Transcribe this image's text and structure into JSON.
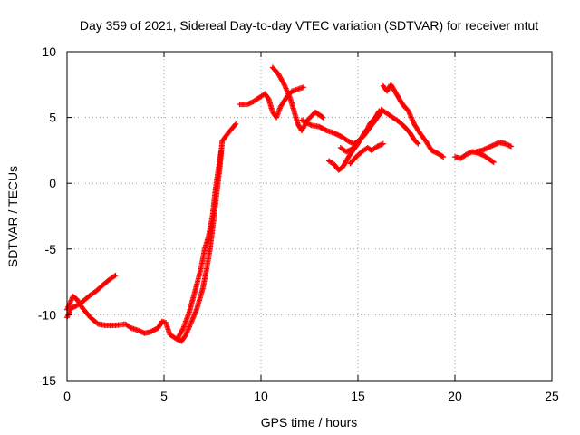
{
  "chart_data": {
    "type": "scatter",
    "title": "Day 359 of 2021, Sidereal Day-to-day VTEC variation (SDTVAR) for receiver mtut",
    "xlabel": "GPS time / hours",
    "ylabel": "SDTVAR / TECUs",
    "xlim": [
      0,
      25
    ],
    "ylim": [
      -15,
      10
    ],
    "xticks": [
      0,
      5,
      10,
      15,
      20,
      25
    ],
    "yticks": [
      -15,
      -10,
      -5,
      0,
      5,
      10
    ],
    "grid": true,
    "marker": "+",
    "series": [
      {
        "name": "mtut",
        "color": "#ff0000",
        "segments": [
          [
            [
              0.0,
              -10.2
            ],
            [
              0.2,
              -9.5
            ],
            [
              0.5,
              -9.3
            ],
            [
              0.8,
              -9.0
            ],
            [
              1.2,
              -8.5
            ],
            [
              1.5,
              -8.2
            ],
            [
              1.8,
              -7.8
            ],
            [
              2.2,
              -7.3
            ],
            [
              2.5,
              -7.0
            ]
          ],
          [
            [
              0.0,
              -9.6
            ],
            [
              0.3,
              -8.6
            ],
            [
              0.5,
              -8.8
            ],
            [
              0.8,
              -9.5
            ],
            [
              1.2,
              -10.2
            ],
            [
              1.6,
              -10.7
            ],
            [
              2.0,
              -10.8
            ],
            [
              2.5,
              -10.8
            ],
            [
              3.0,
              -10.7
            ],
            [
              3.3,
              -11.0
            ],
            [
              3.7,
              -11.2
            ],
            [
              4.0,
              -11.4
            ],
            [
              4.3,
              -11.3
            ],
            [
              4.7,
              -11.0
            ],
            [
              4.9,
              -10.5
            ],
            [
              5.1,
              -10.6
            ],
            [
              5.3,
              -11.5
            ],
            [
              5.6,
              -11.8
            ],
            [
              5.9,
              -12.0
            ],
            [
              6.1,
              -11.6
            ],
            [
              6.4,
              -10.6
            ],
            [
              6.7,
              -9.5
            ],
            [
              7.0,
              -8.0
            ],
            [
              7.2,
              -6.5
            ],
            [
              7.35,
              -5.2
            ],
            [
              7.5,
              -3.5
            ],
            [
              7.7,
              -1.0
            ],
            [
              7.9,
              1.5
            ],
            [
              8.0,
              3.2
            ],
            [
              8.3,
              3.8
            ],
            [
              8.7,
              4.5
            ]
          ],
          [
            [
              5.7,
              -11.8
            ],
            [
              6.0,
              -11.0
            ],
            [
              6.3,
              -9.8
            ],
            [
              6.6,
              -8.2
            ],
            [
              6.9,
              -6.5
            ],
            [
              7.1,
              -5.0
            ],
            [
              7.3,
              -4.0
            ],
            [
              7.5,
              -2.5
            ],
            [
              7.65,
              -0.5
            ],
            [
              7.8,
              1.0
            ],
            [
              7.95,
              2.5
            ]
          ],
          [
            [
              8.9,
              6.0
            ],
            [
              9.3,
              6.0
            ],
            [
              9.6,
              6.2
            ],
            [
              9.9,
              6.5
            ],
            [
              10.2,
              6.8
            ],
            [
              10.4,
              6.4
            ],
            [
              10.6,
              5.4
            ],
            [
              10.8,
              5.0
            ],
            [
              11.0,
              5.8
            ],
            [
              11.3,
              6.5
            ],
            [
              11.6,
              7.0
            ],
            [
              12.0,
              7.2
            ],
            [
              12.2,
              7.3
            ]
          ],
          [
            [
              10.6,
              8.8
            ],
            [
              10.9,
              8.3
            ],
            [
              11.2,
              7.5
            ],
            [
              11.5,
              6.5
            ],
            [
              11.7,
              5.5
            ],
            [
              11.9,
              4.5
            ],
            [
              12.1,
              4.0
            ],
            [
              12.4,
              4.8
            ],
            [
              12.8,
              5.4
            ],
            [
              13.0,
              5.2
            ],
            [
              13.2,
              5.0
            ]
          ],
          [
            [
              12.1,
              4.8
            ],
            [
              12.6,
              4.4
            ],
            [
              13.0,
              4.3
            ],
            [
              13.4,
              4.0
            ],
            [
              13.8,
              3.8
            ],
            [
              14.2,
              3.5
            ],
            [
              14.5,
              3.2
            ],
            [
              14.8,
              3.0
            ],
            [
              15.1,
              3.3
            ],
            [
              15.4,
              3.8
            ],
            [
              15.6,
              4.5
            ],
            [
              15.9,
              5.0
            ],
            [
              16.1,
              5.5
            ]
          ],
          [
            [
              13.5,
              1.7
            ],
            [
              13.8,
              1.4
            ],
            [
              14.0,
              1.0
            ],
            [
              14.2,
              1.2
            ],
            [
              14.4,
              1.7
            ],
            [
              14.6,
              2.2
            ],
            [
              14.8,
              2.6
            ],
            [
              15.0,
              3.0
            ],
            [
              15.2,
              3.5
            ],
            [
              15.4,
              4.0
            ],
            [
              15.6,
              4.3
            ],
            [
              15.8,
              4.6
            ],
            [
              16.0,
              5.0
            ],
            [
              16.2,
              5.4
            ]
          ],
          [
            [
              14.6,
              1.5
            ],
            [
              14.9,
              2.0
            ],
            [
              15.2,
              2.4
            ],
            [
              15.5,
              2.7
            ],
            [
              15.7,
              2.5
            ],
            [
              16.0,
              2.8
            ],
            [
              16.3,
              3.0
            ]
          ],
          [
            [
              14.1,
              2.7
            ],
            [
              14.4,
              2.4
            ],
            [
              14.7,
              2.6
            ],
            [
              15.0,
              3.2
            ],
            [
              15.3,
              3.6
            ],
            [
              15.6,
              4.2
            ],
            [
              15.9,
              4.8
            ]
          ],
          [
            [
              16.3,
              7.4
            ],
            [
              16.5,
              7.0
            ],
            [
              16.7,
              7.5
            ],
            [
              16.9,
              7.0
            ],
            [
              17.1,
              6.5
            ],
            [
              17.3,
              6.0
            ],
            [
              17.6,
              5.5
            ],
            [
              17.9,
              4.5
            ],
            [
              18.2,
              3.8
            ],
            [
              18.5,
              3.2
            ],
            [
              18.8,
              2.5
            ],
            [
              19.2,
              2.2
            ],
            [
              19.4,
              2.0
            ]
          ],
          [
            [
              16.2,
              5.6
            ],
            [
              16.5,
              5.3
            ],
            [
              16.8,
              5.0
            ],
            [
              17.1,
              4.7
            ],
            [
              17.4,
              4.3
            ],
            [
              17.7,
              3.8
            ],
            [
              17.9,
              3.3
            ],
            [
              18.1,
              3.0
            ]
          ],
          [
            [
              20.0,
              2.0
            ],
            [
              20.3,
              1.9
            ],
            [
              20.6,
              2.2
            ],
            [
              20.9,
              2.4
            ],
            [
              21.2,
              2.3
            ],
            [
              21.5,
              2.1
            ],
            [
              21.8,
              1.8
            ],
            [
              22.0,
              1.6
            ]
          ],
          [
            [
              21.1,
              2.4
            ],
            [
              21.4,
              2.5
            ],
            [
              21.7,
              2.7
            ],
            [
              22.0,
              2.9
            ],
            [
              22.3,
              3.1
            ],
            [
              22.6,
              3.0
            ],
            [
              22.9,
              2.8
            ]
          ]
        ]
      }
    ]
  }
}
